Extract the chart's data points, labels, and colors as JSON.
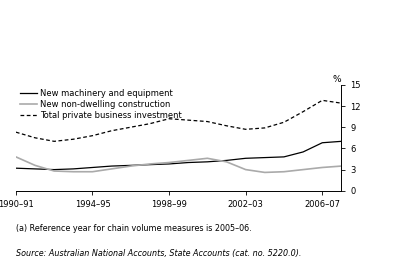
{
  "years": [
    1990,
    1991,
    1992,
    1993,
    1994,
    1995,
    1996,
    1997,
    1998,
    1999,
    2000,
    2001,
    2002,
    2003,
    2004,
    2005,
    2006,
    2007
  ],
  "machinery": [
    3.2,
    3.1,
    3.0,
    3.1,
    3.3,
    3.5,
    3.6,
    3.7,
    3.8,
    4.0,
    4.1,
    4.3,
    4.6,
    4.7,
    4.8,
    5.5,
    6.8,
    7.0
  ],
  "construction": [
    4.8,
    3.6,
    2.8,
    2.7,
    2.7,
    3.1,
    3.5,
    3.8,
    4.0,
    4.3,
    4.6,
    4.1,
    3.0,
    2.6,
    2.7,
    3.0,
    3.3,
    3.5
  ],
  "total": [
    8.3,
    7.5,
    7.0,
    7.3,
    7.8,
    8.5,
    9.0,
    9.5,
    10.2,
    10.0,
    9.8,
    9.2,
    8.7,
    8.9,
    9.7,
    11.2,
    12.8,
    12.4
  ],
  "xtick_labels": [
    "1990–91",
    "1994–95",
    "1998–99",
    "2002–03",
    "2006–07"
  ],
  "xtick_positions": [
    1990,
    1994,
    1998,
    2002,
    2006
  ],
  "ytick_labels": [
    "0",
    "3",
    "6",
    "9",
    "12",
    "15"
  ],
  "ytick_values": [
    0,
    3,
    6,
    9,
    12,
    15
  ],
  "ylim": [
    0,
    15
  ],
  "xlim": [
    1990,
    2007
  ],
  "ylabel": "%",
  "machinery_color": "#000000",
  "construction_color": "#aaaaaa",
  "total_color": "#000000",
  "legend_labels": [
    "New machinery and equipment",
    "New non-dwelling construction",
    "Total private business investment"
  ],
  "footnote": "(a) Reference year for chain volume measures is 2005–06.",
  "source": "Source: Australian National Accounts, State Accounts (cat. no. 5220.0)."
}
